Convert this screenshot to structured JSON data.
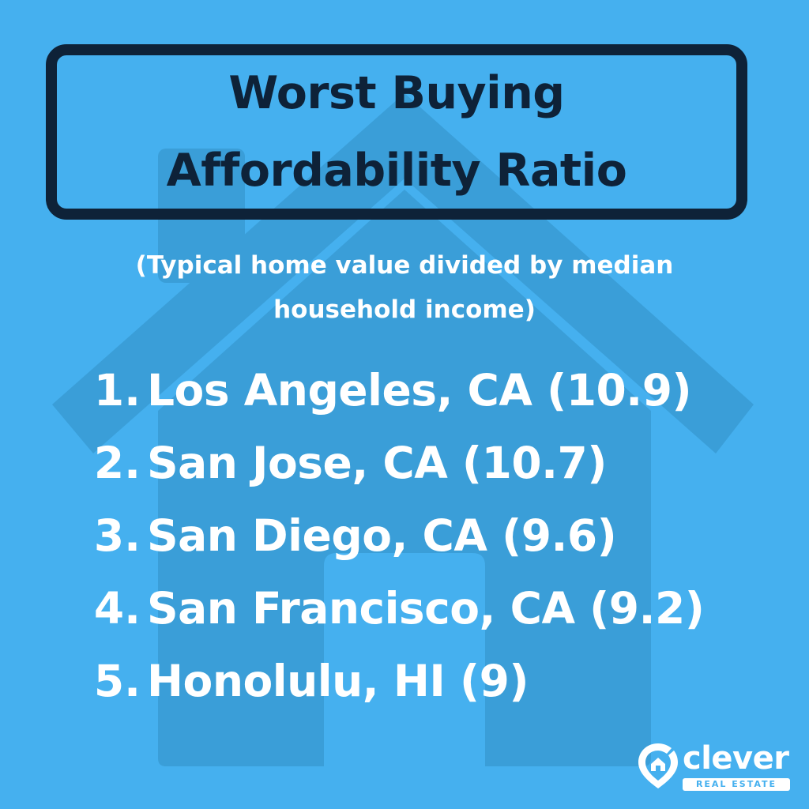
{
  "title": {
    "line1": "Worst Buying",
    "line2": "Affordability Ratio"
  },
  "subtitle": {
    "line1": "(Typical home value divided by median",
    "line2": "household income)"
  },
  "ranking": [
    {
      "rank": "1.",
      "city": "Los Angeles, CA (10.9)"
    },
    {
      "rank": "2.",
      "city": "San Jose, CA (10.7)"
    },
    {
      "rank": "3.",
      "city": "San Diego, CA (9.6)"
    },
    {
      "rank": "4.",
      "city": "San Francisco, CA (9.2)"
    },
    {
      "rank": "5.",
      "city": "Honolulu, HI (9)"
    }
  ],
  "brand": {
    "name": "clever",
    "tagline": "REAL ESTATE",
    "icon": "location-pin-house-icon"
  },
  "colors": {
    "background": "#45b0ef",
    "house_watermark": "#3a9ed8",
    "title_ink": "#0e2238",
    "text": "#ffffff"
  }
}
